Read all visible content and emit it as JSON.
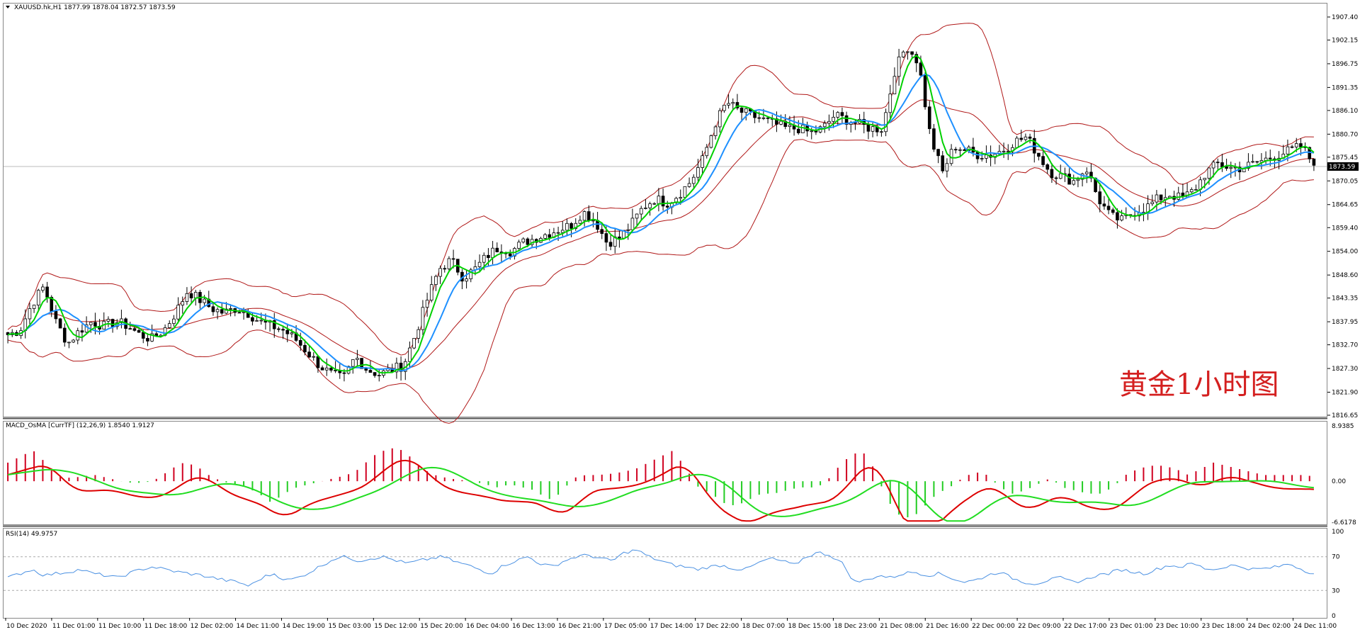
{
  "colors": {
    "bull": "#ffffff",
    "bear": "#000000",
    "bands": "#b01818",
    "ma_fast": "#00d000",
    "ma_slow": "#1e90ff",
    "hist_pos": "#d00020",
    "hist_neg": "#22cc22",
    "macd": "#dd0000",
    "signal": "#22dd22",
    "rsi": "#4a90e2",
    "price_tag_bg": "#000000",
    "watermark": "#d42020"
  },
  "main": {
    "header": "XAUUSD.hk,H1  1877.99 1878.04 1872.57 1873.59",
    "price_levels": [
      "1907.40",
      "1902.15",
      "1896.75",
      "1891.35",
      "1886.10",
      "1880.70",
      "1875.45",
      "1870.05",
      "1864.65",
      "1859.40",
      "1854.00",
      "1848.60",
      "1843.35",
      "1837.95",
      "1832.70",
      "1827.30",
      "1821.90",
      "1816.65"
    ],
    "current_price": "1873.59",
    "watermark": "黄金1小时图"
  },
  "macd": {
    "header": "MACD_OsMA [CurrTF] (12,26,9) 1.8540 1.9127",
    "levels": [
      "8.9385",
      "0.00",
      "-6.6178"
    ]
  },
  "rsi": {
    "header": "RSI(14) 49.9757",
    "levels": [
      "100",
      "70",
      "30",
      "0"
    ]
  },
  "time_labels": [
    "10 Dec 2020",
    "11 Dec 01:00",
    "11 Dec 10:00",
    "11 Dec 18:00",
    "12 Dec 02:00",
    "14 Dec 11:00",
    "14 Dec 19:00",
    "15 Dec 03:00",
    "15 Dec 12:00",
    "15 Dec 20:00",
    "16 Dec 04:00",
    "16 Dec 13:00",
    "16 Dec 21:00",
    "17 Dec 05:00",
    "17 Dec 14:00",
    "17 Dec 22:00",
    "18 Dec 07:00",
    "18 Dec 15:00",
    "18 Dec 23:00",
    "21 Dec 08:00",
    "21 Dec 16:00",
    "22 Dec 00:00",
    "22 Dec 09:00",
    "22 Dec 17:00",
    "23 Dec 01:00",
    "23 Dec 10:00",
    "23 Dec 18:00",
    "24 Dec 02:00",
    "24 Dec 11:00"
  ],
  "chart_data": {
    "type": "candlestick",
    "symbol": "XAUUSD.hk",
    "timeframe": "H1",
    "ylim": [
      1816.65,
      1907.4
    ],
    "close_path": [
      1835,
      1836,
      1842,
      1846,
      1838,
      1833,
      1836,
      1838,
      1837,
      1838,
      1837,
      1835,
      1834,
      1836,
      1840,
      1845,
      1843,
      1841,
      1840,
      1841,
      1840,
      1838,
      1837,
      1836,
      1834,
      1831,
      1828,
      1826,
      1825,
      1830,
      1827,
      1826,
      1827,
      1828,
      1835,
      1843,
      1850,
      1852,
      1848,
      1850,
      1853,
      1855,
      1854,
      1856,
      1857,
      1858,
      1859,
      1860,
      1863,
      1861,
      1856,
      1857,
      1860,
      1864,
      1866,
      1865,
      1867,
      1870,
      1875,
      1883,
      1888,
      1886,
      1885,
      1884,
      1883,
      1882,
      1882,
      1881,
      1882,
      1885,
      1884,
      1883,
      1882,
      1882,
      1895,
      1901,
      1897,
      1880,
      1872,
      1878,
      1877,
      1876,
      1876,
      1877,
      1879,
      1880,
      1876,
      1872,
      1871,
      1870,
      1873,
      1866,
      1862,
      1861,
      1863,
      1864,
      1866,
      1867,
      1866,
      1868,
      1872,
      1874,
      1873,
      1873,
      1874,
      1875,
      1876,
      1877,
      1878,
      1873.6
    ],
    "macd_hist_path": [
      3,
      4,
      5,
      3,
      1,
      0.5,
      0.8,
      1,
      0.5,
      0,
      -0.3,
      -0.2,
      0.5,
      2,
      3,
      2.5,
      1,
      0,
      -0.5,
      -1,
      -2,
      -3.5,
      -2,
      -1,
      -0.5,
      0,
      0.5,
      1,
      2,
      4,
      5,
      5.5,
      4,
      2,
      1,
      0.5,
      0.2,
      0,
      -0.5,
      -1,
      -0.5,
      -1,
      -1.5,
      -3,
      -2,
      0.5,
      1,
      1,
      1.2,
      1.5,
      2,
      3,
      4,
      5,
      2,
      -1,
      -2,
      -3.5,
      -4,
      -3,
      -2,
      -2,
      -1.5,
      -1,
      -1,
      -0.5,
      2,
      4,
      5,
      2,
      -3,
      -5.5,
      -6,
      -4,
      -2,
      -1,
      0.5,
      1.5,
      1,
      -1,
      -2,
      -1.5,
      -0.5,
      0.5,
      -1,
      -1.5,
      -2,
      -2,
      -1,
      1,
      2,
      2.5,
      2.5,
      2,
      1,
      2,
      3,
      2.5,
      2,
      1.5,
      1,
      1,
      1,
      1,
      0.8
    ],
    "macd_range": [
      -6.6178,
      8.9385
    ],
    "rsi_path": [
      45,
      50,
      55,
      48,
      50,
      52,
      55,
      50,
      48,
      45,
      50,
      55,
      58,
      55,
      52,
      50,
      48,
      45,
      42,
      40,
      35,
      45,
      50,
      42,
      45,
      52,
      60,
      68,
      70,
      65,
      68,
      70,
      66,
      62,
      65,
      68,
      70,
      64,
      60,
      55,
      50,
      60,
      65,
      70,
      62,
      58,
      65,
      70,
      72,
      68,
      65,
      75,
      78,
      70,
      65,
      60,
      58,
      55,
      58,
      60,
      56,
      55,
      62,
      68,
      65,
      60,
      70,
      75,
      72,
      62,
      40,
      42,
      48,
      45,
      50,
      52,
      48,
      50,
      45,
      40,
      42,
      48,
      52,
      45,
      40,
      38,
      42,
      45,
      40,
      42,
      48,
      50,
      55,
      52,
      50,
      55,
      60,
      58,
      62,
      56,
      55,
      60,
      58,
      55,
      56,
      58,
      62,
      55,
      50
    ],
    "rsi_range": [
      0,
      100
    ]
  }
}
